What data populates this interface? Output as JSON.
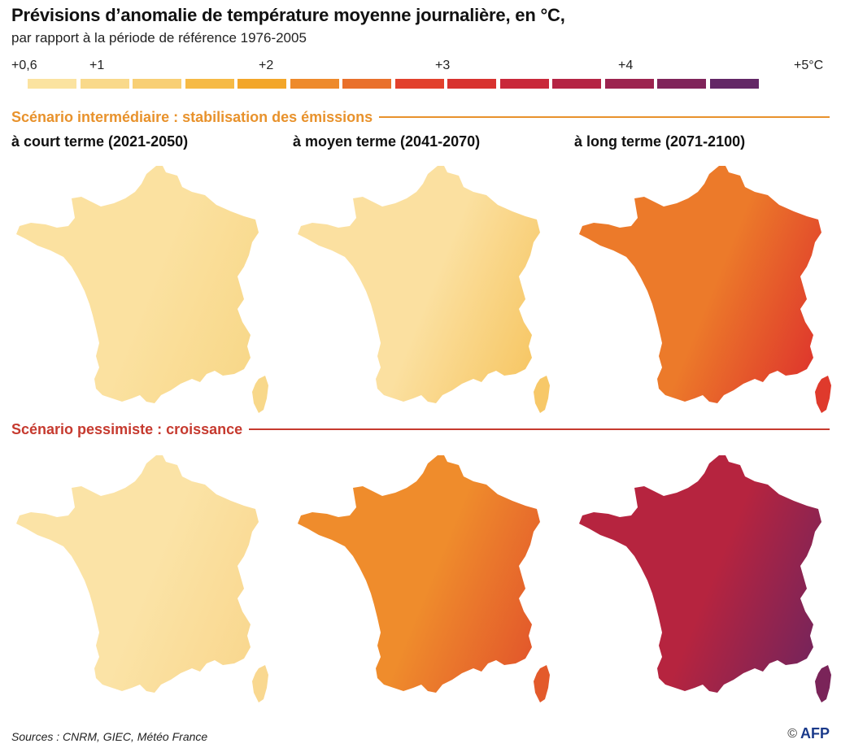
{
  "title": "Prévisions d’anomalie de température moyenne journalière, en °C,",
  "subtitle": "par rapport à la période de référence 1976-2005",
  "legend": {
    "ticks": [
      "+0,6",
      "+1",
      "+2",
      "+3",
      "+4",
      "+5°C"
    ],
    "colors": [
      "#fbe3a0",
      "#f9d98a",
      "#f8cf74",
      "#f6ba45",
      "#f3a629",
      "#ee8a2b",
      "#e9702b",
      "#e2402c",
      "#d8322f",
      "#c9283a",
      "#b52444",
      "#9c234f",
      "#80245a",
      "#632766"
    ]
  },
  "scenarios": [
    {
      "label": "Scénario intermédiaire : stabilisation des émissions",
      "color": "#e8922c"
    },
    {
      "label": "Scénario pessimiste : croissance",
      "color": "#c63a2f"
    }
  ],
  "columns": [
    "à court terme (2021-2050)",
    "à moyen terme (2041-2070)",
    "à long terme (2071-2100)"
  ],
  "maps": [
    {
      "scenario": 0,
      "period": 0,
      "fill": "#fbe1a0",
      "accent": "#f8d88a"
    },
    {
      "scenario": 0,
      "period": 1,
      "fill": "#fbe0a0",
      "accent": "#f7c868"
    },
    {
      "scenario": 0,
      "period": 2,
      "fill": "#ec7a2a",
      "accent": "#df3a2c"
    },
    {
      "scenario": 1,
      "period": 0,
      "fill": "#fbe3a6",
      "accent": "#f9d890"
    },
    {
      "scenario": 1,
      "period": 1,
      "fill": "#ef8c2c",
      "accent": "#e35a2b"
    },
    {
      "scenario": 1,
      "period": 2,
      "fill": "#b6243f",
      "accent": "#7a2459"
    }
  ],
  "source": "Sources : CNRM, GIEC, Météo France",
  "credit": {
    "copyright": "©",
    "agency": "AFP"
  }
}
